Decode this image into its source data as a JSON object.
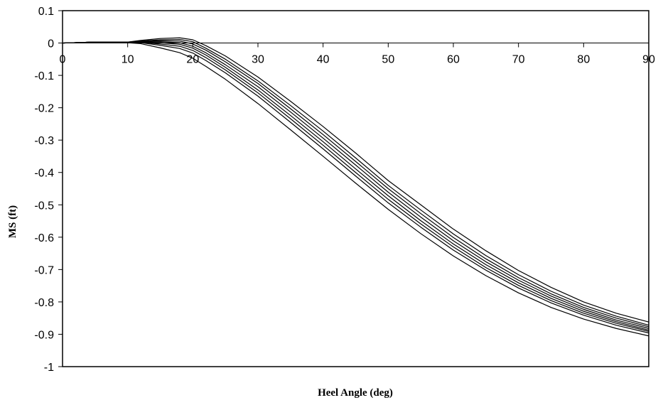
{
  "chart_data": {
    "type": "line",
    "title": "",
    "xlabel": "Heel Angle (deg)",
    "ylabel": "MS (ft)",
    "xlim": [
      0,
      90
    ],
    "ylim": [
      -1,
      0.1
    ],
    "xticks": [
      0,
      10,
      20,
      30,
      40,
      50,
      60,
      70,
      80,
      90
    ],
    "yticks": [
      0.1,
      0,
      -0.1,
      -0.2,
      -0.3,
      -0.4,
      -0.5,
      -0.6,
      -0.7,
      -0.8,
      -0.9,
      -1
    ],
    "xtick_labels": [
      "0",
      "10",
      "20",
      "30",
      "40",
      "50",
      "60",
      "70",
      "80",
      "90"
    ],
    "ytick_labels": [
      "0.1",
      "0",
      "-0.1",
      "-0.2",
      "-0.3",
      "-0.4",
      "-0.5",
      "-0.6",
      "-0.7",
      "-0.8",
      "-0.9",
      "-1"
    ],
    "grid": false,
    "legend": "none",
    "line_color": "#000000",
    "x": [
      0,
      5,
      10,
      12,
      15,
      18,
      20,
      22,
      25,
      30,
      35,
      40,
      45,
      50,
      55,
      60,
      65,
      70,
      75,
      80,
      85,
      90
    ],
    "series": [
      {
        "values": [
          0,
          0.003,
          0.003,
          0.008,
          0.014,
          0.016,
          0.01,
          -0.008,
          -0.04,
          -0.105,
          -0.18,
          -0.258,
          -0.34,
          -0.425,
          -0.5,
          -0.575,
          -0.642,
          -0.703,
          -0.755,
          -0.8,
          -0.835,
          -0.862
        ]
      },
      {
        "values": [
          0,
          0.003,
          0.003,
          0.006,
          0.01,
          0.011,
          0.004,
          -0.016,
          -0.05,
          -0.117,
          -0.193,
          -0.272,
          -0.355,
          -0.44,
          -0.516,
          -0.59,
          -0.657,
          -0.716,
          -0.767,
          -0.81,
          -0.844,
          -0.872
        ]
      },
      {
        "values": [
          0,
          0.003,
          0.003,
          0.005,
          0.007,
          0.006,
          -0.003,
          -0.022,
          -0.058,
          -0.125,
          -0.203,
          -0.283,
          -0.366,
          -0.45,
          -0.527,
          -0.601,
          -0.667,
          -0.725,
          -0.775,
          -0.817,
          -0.85,
          -0.877
        ]
      },
      {
        "values": [
          0,
          0.003,
          0.002,
          0.004,
          0.004,
          0.001,
          -0.01,
          -0.03,
          -0.067,
          -0.135,
          -0.213,
          -0.294,
          -0.377,
          -0.461,
          -0.538,
          -0.611,
          -0.676,
          -0.733,
          -0.782,
          -0.823,
          -0.856,
          -0.882
        ]
      },
      {
        "values": [
          0,
          0.003,
          0.002,
          0.003,
          0.001,
          -0.004,
          -0.016,
          -0.037,
          -0.075,
          -0.145,
          -0.224,
          -0.305,
          -0.389,
          -0.472,
          -0.549,
          -0.621,
          -0.685,
          -0.741,
          -0.789,
          -0.829,
          -0.861,
          -0.887
        ]
      },
      {
        "values": [
          0,
          0.003,
          0.002,
          0.002,
          -0.003,
          -0.01,
          -0.023,
          -0.045,
          -0.083,
          -0.154,
          -0.234,
          -0.316,
          -0.4,
          -0.483,
          -0.559,
          -0.63,
          -0.694,
          -0.749,
          -0.796,
          -0.835,
          -0.866,
          -0.891
        ]
      },
      {
        "values": [
          0,
          0.003,
          0.002,
          0.001,
          -0.007,
          -0.017,
          -0.031,
          -0.054,
          -0.092,
          -0.164,
          -0.245,
          -0.327,
          -0.411,
          -0.494,
          -0.569,
          -0.64,
          -0.702,
          -0.757,
          -0.803,
          -0.841,
          -0.872,
          -0.896
        ]
      },
      {
        "values": [
          0,
          0.003,
          0.001,
          -0.002,
          -0.015,
          -0.03,
          -0.047,
          -0.072,
          -0.112,
          -0.187,
          -0.268,
          -0.35,
          -0.433,
          -0.514,
          -0.589,
          -0.658,
          -0.719,
          -0.772,
          -0.817,
          -0.853,
          -0.882,
          -0.905
        ]
      }
    ]
  }
}
